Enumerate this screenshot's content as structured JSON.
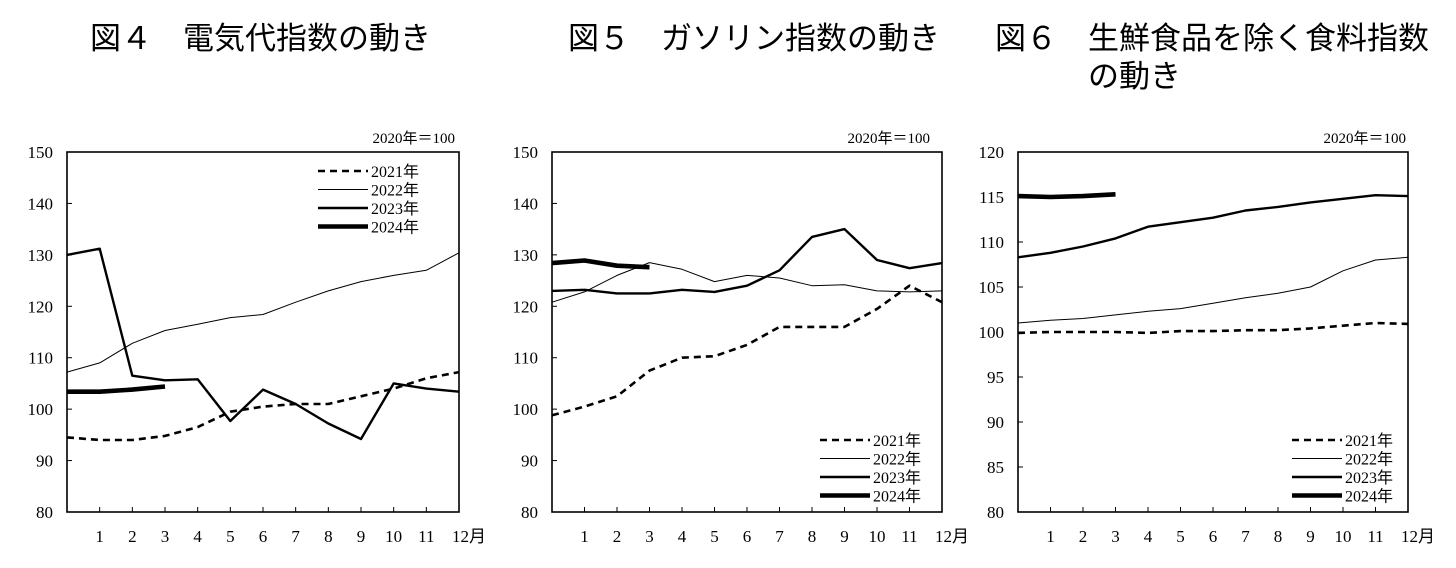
{
  "panels": [
    {
      "title_num": "図４",
      "title_text": "電気代指数の動き"
    },
    {
      "title_num": "図５",
      "title_text": "ガソリン指数の動き"
    },
    {
      "title_num": "図６",
      "title_text": "生鮮食品を除く食料指数",
      "title_text2": "の動き"
    }
  ],
  "chart_data": [
    {
      "type": "line",
      "title": "図４　電気代指数の動き",
      "base_note": "2020年＝100",
      "x_ticks": [
        "1",
        "2",
        "3",
        "4",
        "5",
        "6",
        "7",
        "8",
        "9",
        "10",
        "11",
        "12月"
      ],
      "xlim": [
        0,
        12
      ],
      "ylim": [
        80,
        150
      ],
      "y_ticks": [
        80,
        90,
        100,
        110,
        120,
        130,
        140,
        150
      ],
      "legend_position": "top-right",
      "series": [
        {
          "name": "2021年",
          "style": "dashed",
          "x": [
            0,
            1,
            2,
            3,
            4,
            5,
            6,
            7,
            8,
            9,
            10,
            11,
            12
          ],
          "values": [
            94.5,
            94.0,
            94.0,
            94.8,
            96.5,
            99.5,
            100.5,
            101.0,
            101.0,
            102.5,
            104.0,
            106.0,
            107.2
          ]
        },
        {
          "name": "2022年",
          "style": "thin",
          "x": [
            0,
            1,
            2,
            3,
            4,
            5,
            6,
            7,
            8,
            9,
            10,
            11,
            12
          ],
          "values": [
            107.2,
            109.0,
            112.8,
            115.3,
            116.5,
            117.8,
            118.4,
            120.8,
            123.0,
            124.8,
            126.0,
            127.0,
            130.4
          ]
        },
        {
          "name": "2023年",
          "style": "medium",
          "x": [
            0,
            1,
            2,
            3,
            4,
            5,
            6,
            7,
            8,
            9,
            10,
            11,
            12
          ],
          "values": [
            130.0,
            131.2,
            106.5,
            105.6,
            105.8,
            97.7,
            103.8,
            101.0,
            97.2,
            94.2,
            105.0,
            104.0,
            103.4
          ]
        },
        {
          "name": "2024年",
          "style": "thick",
          "x": [
            0,
            1,
            2,
            3
          ],
          "values": [
            103.4,
            103.4,
            103.8,
            104.4
          ]
        }
      ]
    },
    {
      "type": "line",
      "title": "図５　ガソリン指数の動き",
      "base_note": "2020年＝100",
      "x_ticks": [
        "1",
        "2",
        "3",
        "4",
        "5",
        "6",
        "7",
        "8",
        "9",
        "10",
        "11",
        "12月"
      ],
      "xlim": [
        0,
        12
      ],
      "ylim": [
        80,
        150
      ],
      "y_ticks": [
        80,
        90,
        100,
        110,
        120,
        130,
        140,
        150
      ],
      "legend_position": "bottom-right",
      "series": [
        {
          "name": "2021年",
          "style": "dashed",
          "x": [
            0,
            1,
            2,
            3,
            4,
            5,
            6,
            7,
            8,
            9,
            10,
            11,
            12
          ],
          "values": [
            98.8,
            100.5,
            102.5,
            107.5,
            110.0,
            110.3,
            112.5,
            116.0,
            116.0,
            116.0,
            119.5,
            124.0,
            120.8
          ]
        },
        {
          "name": "2022年",
          "style": "thin",
          "x": [
            0,
            1,
            2,
            3,
            4,
            5,
            6,
            7,
            8,
            9,
            10,
            11,
            12
          ],
          "values": [
            120.8,
            122.8,
            126.0,
            128.5,
            127.2,
            124.8,
            126.0,
            125.5,
            124.0,
            124.2,
            123.0,
            122.8,
            123.0
          ]
        },
        {
          "name": "2023年",
          "style": "medium",
          "x": [
            0,
            1,
            2,
            3,
            4,
            5,
            6,
            7,
            8,
            9,
            10,
            11,
            12
          ],
          "values": [
            123.0,
            123.2,
            122.5,
            122.5,
            123.2,
            122.8,
            124.0,
            127.0,
            133.5,
            135.0,
            129.0,
            127.4,
            128.4
          ]
        },
        {
          "name": "2024年",
          "style": "thick",
          "x": [
            0,
            1,
            2,
            3
          ],
          "values": [
            128.4,
            128.9,
            127.9,
            127.6
          ]
        }
      ]
    },
    {
      "type": "line",
      "title": "図６　生鮮食品を除く食料指数の動き",
      "base_note": "2020年＝100",
      "x_ticks": [
        "1",
        "2",
        "3",
        "4",
        "5",
        "6",
        "7",
        "8",
        "9",
        "10",
        "11",
        "12月"
      ],
      "xlim": [
        0,
        12
      ],
      "ylim": [
        80,
        120
      ],
      "y_ticks": [
        80,
        85,
        90,
        95,
        100,
        105,
        110,
        115,
        120
      ],
      "legend_position": "bottom-right",
      "series": [
        {
          "name": "2021年",
          "style": "dashed",
          "x": [
            0,
            1,
            2,
            3,
            4,
            5,
            6,
            7,
            8,
            9,
            10,
            11,
            12
          ],
          "values": [
            99.9,
            100.0,
            100.0,
            100.0,
            99.9,
            100.1,
            100.1,
            100.2,
            100.2,
            100.4,
            100.7,
            101.0,
            100.9
          ]
        },
        {
          "name": "2022年",
          "style": "thin",
          "x": [
            0,
            1,
            2,
            3,
            4,
            5,
            6,
            7,
            8,
            9,
            10,
            11,
            12
          ],
          "values": [
            101.0,
            101.3,
            101.5,
            101.9,
            102.3,
            102.6,
            103.2,
            103.8,
            104.3,
            105.0,
            106.8,
            108.0,
            108.3
          ]
        },
        {
          "name": "2023年",
          "style": "medium",
          "x": [
            0,
            1,
            2,
            3,
            4,
            5,
            6,
            7,
            8,
            9,
            10,
            11,
            12
          ],
          "values": [
            108.3,
            108.8,
            109.5,
            110.4,
            111.7,
            112.2,
            112.7,
            113.5,
            113.9,
            114.4,
            114.8,
            115.2,
            115.1
          ]
        },
        {
          "name": "2024年",
          "style": "thick",
          "x": [
            0,
            1,
            2,
            3
          ],
          "values": [
            115.1,
            115.0,
            115.1,
            115.3
          ]
        }
      ]
    }
  ]
}
